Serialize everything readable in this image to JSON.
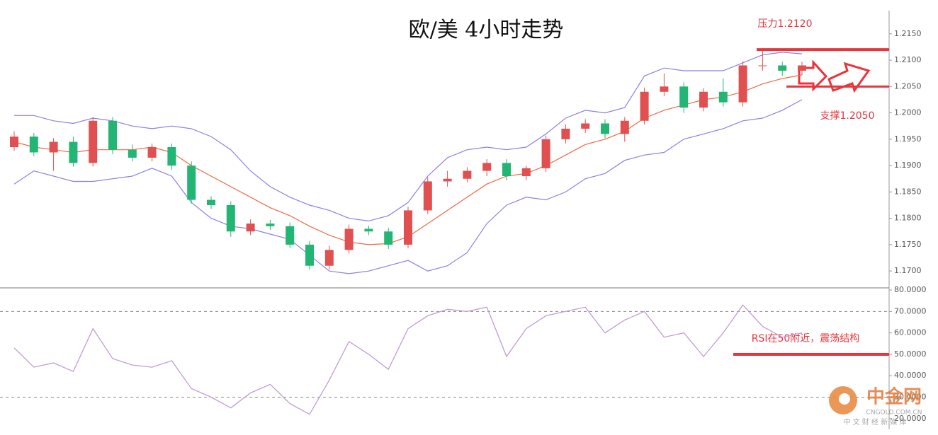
{
  "chart_data": {
    "type": "candlestick",
    "title": "欧/美 4小时走势",
    "up_color": "#e05050",
    "down_color": "#22b573",
    "open": [
      1.1935,
      1.1955,
      1.1925,
      1.1945,
      1.1905,
      1.1985,
      1.193,
      1.1915,
      1.1935,
      1.19,
      1.1835,
      1.1825,
      1.1775,
      1.179,
      1.1785,
      1.175,
      1.171,
      1.174,
      1.178,
      1.1775,
      1.175,
      1.1815,
      1.187,
      1.1875,
      1.189,
      1.1905,
      1.188,
      1.1895,
      1.195,
      1.197,
      1.198,
      1.196,
      1.1985,
      1.204,
      1.205,
      1.201,
      1.204,
      1.202,
      1.209,
      1.209,
      1.208
    ],
    "high": [
      1.1965,
      1.1962,
      1.1952,
      1.1955,
      1.1992,
      1.1992,
      1.194,
      1.1942,
      1.1942,
      1.1908,
      1.1842,
      1.1832,
      1.1798,
      1.1797,
      1.1792,
      1.1757,
      1.1748,
      1.1788,
      1.1786,
      1.1782,
      1.1822,
      1.1878,
      1.189,
      1.1897,
      1.1912,
      1.1912,
      1.19,
      1.1957,
      1.1978,
      1.1988,
      1.1988,
      1.1992,
      1.2048,
      1.2075,
      1.2058,
      1.2047,
      1.2065,
      1.2098,
      1.2118,
      1.2097,
      1.2097
    ],
    "low": [
      1.1928,
      1.1918,
      1.189,
      1.1898,
      1.1898,
      1.1922,
      1.1908,
      1.1908,
      1.1892,
      1.1828,
      1.1818,
      1.1765,
      1.1768,
      1.1778,
      1.1743,
      1.1703,
      1.1703,
      1.1733,
      1.1768,
      1.1742,
      1.1743,
      1.1808,
      1.186,
      1.1868,
      1.188,
      1.1872,
      1.1872,
      1.1888,
      1.1942,
      1.1962,
      1.1952,
      1.1945,
      1.1978,
      1.2032,
      1.2,
      1.2003,
      1.2012,
      1.2012,
      1.208,
      1.207,
      1.2072
    ],
    "close": [
      1.1955,
      1.1925,
      1.1945,
      1.1905,
      1.1985,
      1.193,
      1.1915,
      1.1935,
      1.19,
      1.1835,
      1.1825,
      1.1775,
      1.179,
      1.1785,
      1.175,
      1.171,
      1.174,
      1.178,
      1.1775,
      1.175,
      1.1815,
      1.187,
      1.1875,
      1.189,
      1.1905,
      1.188,
      1.1895,
      1.195,
      1.197,
      1.198,
      1.196,
      1.1985,
      1.204,
      1.205,
      1.201,
      1.204,
      1.202,
      1.209,
      1.209,
      1.208,
      1.209
    ],
    "bollinger": {
      "band_color": "#8c80e6",
      "middle_color": "#ec6a45",
      "upper": [
        1.1995,
        1.1995,
        1.1985,
        1.198,
        1.199,
        1.1985,
        1.1975,
        1.197,
        1.1975,
        1.197,
        1.1955,
        1.193,
        1.189,
        1.186,
        1.184,
        1.1825,
        1.1815,
        1.18,
        1.1795,
        1.1805,
        1.183,
        1.188,
        1.1915,
        1.193,
        1.1935,
        1.193,
        1.1935,
        1.196,
        1.199,
        1.2005,
        1.2,
        1.201,
        1.207,
        1.2085,
        1.208,
        1.208,
        1.208,
        1.2095,
        1.211,
        1.2115,
        1.2112
      ],
      "middle": [
        1.1945,
        1.1935,
        1.193,
        1.1925,
        1.193,
        1.193,
        1.193,
        1.1935,
        1.1925,
        1.19,
        1.188,
        1.186,
        1.184,
        1.182,
        1.1805,
        1.1785,
        1.1768,
        1.1755,
        1.175,
        1.1752,
        1.1765,
        1.179,
        1.1815,
        1.184,
        1.1865,
        1.188,
        1.1885,
        1.19,
        1.192,
        1.194,
        1.195,
        1.1965,
        1.199,
        1.2005,
        1.2015,
        1.2025,
        1.203,
        1.204,
        1.2055,
        1.2065,
        1.2072
      ],
      "lower": [
        1.1865,
        1.189,
        1.188,
        1.187,
        1.187,
        1.1875,
        1.188,
        1.1895,
        1.188,
        1.183,
        1.18,
        1.1785,
        1.178,
        1.177,
        1.176,
        1.173,
        1.17,
        1.1695,
        1.17,
        1.171,
        1.172,
        1.17,
        1.171,
        1.1735,
        1.179,
        1.1825,
        1.184,
        1.1835,
        1.185,
        1.1875,
        1.1885,
        1.191,
        1.192,
        1.1925,
        1.195,
        1.196,
        1.197,
        1.1985,
        1.199,
        1.2005,
        1.2025
      ]
    },
    "ylim": [
      1.1668,
      1.2194
    ],
    "yticks": [
      {
        "value": 1.215,
        "label": "1.2150"
      },
      {
        "value": 1.21,
        "label": "1.2100"
      },
      {
        "value": 1.205,
        "label": "1.2050"
      },
      {
        "value": 1.2,
        "label": "1.2000"
      },
      {
        "value": 1.195,
        "label": "1.1950"
      },
      {
        "value": 1.19,
        "label": "1.1900"
      },
      {
        "value": 1.185,
        "label": "1.1850"
      },
      {
        "value": 1.18,
        "label": "1.1800"
      },
      {
        "value": 1.175,
        "label": "1.1750"
      },
      {
        "value": 1.17,
        "label": "1.1700"
      }
    ],
    "resistance": 1.212,
    "resistance_label": "压力1.2120",
    "support": 1.205,
    "support_label": "支撑1.2050",
    "level_color": "#e8343c",
    "rsi": {
      "color": "#c39bd6",
      "values": [
        53,
        44,
        46,
        42,
        62,
        48,
        45,
        44,
        47,
        34,
        30,
        25,
        32,
        36,
        27,
        22,
        38,
        56,
        50,
        43,
        62,
        68,
        71,
        70,
        72,
        49,
        62,
        68,
        70,
        72,
        60,
        66,
        70,
        58,
        60,
        49,
        60,
        73,
        63,
        58,
        60
      ],
      "ylim": [
        15,
        81
      ],
      "yticks": [
        {
          "value": 80,
          "label": "80.0000"
        },
        {
          "value": 70,
          "label": "70.0000"
        },
        {
          "value": 60,
          "label": "60.0000"
        },
        {
          "value": 50,
          "label": "50.0000"
        },
        {
          "value": 40,
          "label": "40.0000"
        },
        {
          "value": 30,
          "label": "30.0000"
        },
        {
          "value": 20,
          "label": "20.0000"
        }
      ],
      "dashed_levels": [
        70,
        30
      ],
      "reference": 50,
      "annotation": "RSI在50附近，震荡结构"
    }
  },
  "watermark": {
    "brand": "中金网",
    "domain": "CNGOLD.COM.CN",
    "tagline": "中 文 财 经 新 媒 体"
  }
}
